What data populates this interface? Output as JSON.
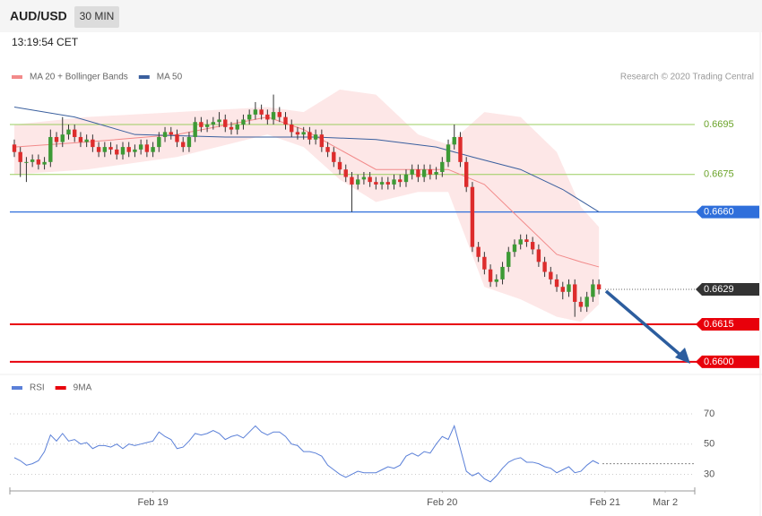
{
  "header": {
    "title": "AUD/USD",
    "timeframe": "30 MIN",
    "time": "13:19:54 CET"
  },
  "chart_data": [
    {
      "type": "candlestick",
      "source": "Research © 2020 Trading Central",
      "xlim": [
        -0.74,
        112.9
      ],
      "ylim": [
        0.6596,
        0.6709
      ],
      "up_color": "#3d9a35",
      "down_color": "#dd2c2c",
      "candles": {
        "open": [
          0.6687,
          0.6684,
          0.668,
          0.668,
          0.6681,
          0.6679,
          0.668,
          0.669,
          0.6688,
          0.6691,
          0.6693,
          0.669,
          0.6688,
          0.6689,
          0.6686,
          0.6684,
          0.6686,
          0.6685,
          0.6683,
          0.6686,
          0.6684,
          0.6685,
          0.6687,
          0.6684,
          0.6686,
          0.669,
          0.6692,
          0.6691,
          0.6688,
          0.6686,
          0.669,
          0.6696,
          0.6694,
          0.6695,
          0.6696,
          0.6697,
          0.6694,
          0.6693,
          0.6695,
          0.6697,
          0.6699,
          0.6701,
          0.6699,
          0.6697,
          0.67,
          0.6698,
          0.6695,
          0.6692,
          0.6691,
          0.6692,
          0.6689,
          0.6691,
          0.6686,
          0.6684,
          0.668,
          0.6677,
          0.6674,
          0.6671,
          0.6673,
          0.6674,
          0.6672,
          0.6671,
          0.6672,
          0.6671,
          0.6673,
          0.6672,
          0.6675,
          0.6677,
          0.6674,
          0.6677,
          0.6675,
          0.6676,
          0.668,
          0.6687,
          0.669,
          0.668,
          0.667,
          0.6646,
          0.6642,
          0.6637,
          0.6632,
          0.6633,
          0.6638,
          0.6644,
          0.6647,
          0.6649,
          0.6648,
          0.6645,
          0.664,
          0.6636,
          0.6633,
          0.663,
          0.6628,
          0.6631,
          0.6624,
          0.6622,
          0.6626,
          0.6631
        ],
        "high": [
          0.6689,
          0.6686,
          0.6682,
          0.6683,
          0.6683,
          0.6682,
          0.6693,
          0.6692,
          0.6698,
          0.6695,
          0.6695,
          0.6692,
          0.6691,
          0.6691,
          0.6688,
          0.6688,
          0.6688,
          0.6687,
          0.6688,
          0.6688,
          0.6687,
          0.6689,
          0.6689,
          0.6688,
          0.6692,
          0.6694,
          0.6694,
          0.6693,
          0.669,
          0.6692,
          0.6698,
          0.6698,
          0.6697,
          0.6698,
          0.67,
          0.6699,
          0.6696,
          0.6697,
          0.6699,
          0.6701,
          0.6704,
          0.6703,
          0.6701,
          0.6707,
          0.6702,
          0.67,
          0.6697,
          0.6694,
          0.6694,
          0.6694,
          0.6693,
          0.6693,
          0.6688,
          0.6686,
          0.6682,
          0.6679,
          0.6676,
          0.6675,
          0.6676,
          0.6676,
          0.6674,
          0.6674,
          0.6674,
          0.6675,
          0.6675,
          0.6677,
          0.6679,
          0.6679,
          0.6679,
          0.6679,
          0.6678,
          0.6682,
          0.6689,
          0.6695,
          0.6692,
          0.6682,
          0.6672,
          0.6648,
          0.6644,
          0.6639,
          0.6635,
          0.664,
          0.6646,
          0.6649,
          0.6651,
          0.6651,
          0.665,
          0.6647,
          0.6642,
          0.6638,
          0.6635,
          0.6632,
          0.6633,
          0.6633,
          0.6626,
          0.6628,
          0.6633,
          0.6633
        ],
        "low": [
          0.6682,
          0.6674,
          0.6672,
          0.6678,
          0.6677,
          0.6677,
          0.6678,
          0.6686,
          0.6686,
          0.6689,
          0.6688,
          0.6686,
          0.6686,
          0.6684,
          0.6682,
          0.6682,
          0.6683,
          0.6681,
          0.6681,
          0.6682,
          0.6682,
          0.6683,
          0.6682,
          0.6682,
          0.6684,
          0.6688,
          0.6689,
          0.6686,
          0.6684,
          0.6684,
          0.6688,
          0.6692,
          0.6692,
          0.6693,
          0.6694,
          0.6692,
          0.6691,
          0.6691,
          0.6693,
          0.6695,
          0.6697,
          0.6697,
          0.6695,
          0.6695,
          0.6696,
          0.6693,
          0.669,
          0.6689,
          0.6689,
          0.6687,
          0.6687,
          0.6684,
          0.6682,
          0.6678,
          0.6675,
          0.6672,
          0.666,
          0.6669,
          0.6671,
          0.667,
          0.6669,
          0.6669,
          0.6669,
          0.6669,
          0.667,
          0.667,
          0.6673,
          0.6672,
          0.6672,
          0.6673,
          0.6673,
          0.6674,
          0.6678,
          0.6685,
          0.6678,
          0.6668,
          0.6644,
          0.664,
          0.6635,
          0.663,
          0.663,
          0.6631,
          0.6636,
          0.6642,
          0.6645,
          0.6646,
          0.6643,
          0.6638,
          0.6634,
          0.6631,
          0.6628,
          0.6625,
          0.6626,
          0.6618,
          0.662,
          0.662,
          0.6624,
          0.6627
        ],
        "close": [
          0.6684,
          0.668,
          0.668,
          0.6681,
          0.6679,
          0.668,
          0.669,
          0.6688,
          0.6691,
          0.6693,
          0.669,
          0.6688,
          0.6689,
          0.6686,
          0.6684,
          0.6686,
          0.6685,
          0.6683,
          0.6686,
          0.6684,
          0.6685,
          0.6687,
          0.6684,
          0.6686,
          0.669,
          0.6692,
          0.6691,
          0.6688,
          0.6686,
          0.669,
          0.6696,
          0.6694,
          0.6695,
          0.6696,
          0.6697,
          0.6694,
          0.6693,
          0.6695,
          0.6697,
          0.6699,
          0.6701,
          0.6699,
          0.6697,
          0.67,
          0.6698,
          0.6695,
          0.6692,
          0.6691,
          0.6692,
          0.6689,
          0.6691,
          0.6686,
          0.6684,
          0.668,
          0.6677,
          0.6674,
          0.6671,
          0.6673,
          0.6674,
          0.6672,
          0.6671,
          0.6672,
          0.6671,
          0.6673,
          0.6672,
          0.6675,
          0.6677,
          0.6674,
          0.6677,
          0.6675,
          0.6676,
          0.668,
          0.6687,
          0.669,
          0.668,
          0.667,
          0.6646,
          0.6642,
          0.6637,
          0.6632,
          0.6633,
          0.6638,
          0.6644,
          0.6647,
          0.6649,
          0.6648,
          0.6645,
          0.664,
          0.6636,
          0.6633,
          0.663,
          0.6628,
          0.6631,
          0.6624,
          0.6622,
          0.6626,
          0.6631,
          0.6629
        ]
      },
      "series": [
        {
          "name": "MA 20 + Bollinger Bands",
          "color": "#f28a8a",
          "band_color": "#fde3e3",
          "x": [
            0,
            12,
            27,
            42,
            48,
            54,
            60,
            67,
            72,
            78,
            84,
            90,
            94,
            97
          ],
          "values": [
            0.6686,
            0.6688,
            0.6691,
            0.6698,
            0.6693,
            0.6685,
            0.6677,
            0.6677,
            0.6677,
            0.6671,
            0.6657,
            0.6643,
            0.664,
            0.6638
          ],
          "upper": [
            0.6695,
            0.6698,
            0.67,
            0.6702,
            0.67,
            0.6709,
            0.6707,
            0.6691,
            0.6687,
            0.67,
            0.6698,
            0.6684,
            0.6662,
            0.6654
          ],
          "lower": [
            0.6675,
            0.6677,
            0.6682,
            0.6691,
            0.6686,
            0.6673,
            0.6664,
            0.6668,
            0.6668,
            0.663,
            0.6625,
            0.6618,
            0.6616,
            0.6623
          ]
        },
        {
          "name": "MA 50",
          "color": "#3a5f9e",
          "x": [
            0,
            10,
            20,
            35,
            50,
            60,
            70,
            76,
            84,
            91,
            97
          ],
          "values": [
            0.6702,
            0.6698,
            0.6691,
            0.669,
            0.669,
            0.6689,
            0.6686,
            0.6682,
            0.6677,
            0.6669,
            0.666
          ]
        }
      ],
      "levels": [
        {
          "value": 0.6695,
          "color": "#9acd5f",
          "style": "line"
        },
        {
          "value": 0.6675,
          "color": "#9acd5f",
          "style": "line"
        },
        {
          "value": 0.666,
          "label": "0.6660",
          "color": "#2f6fdb",
          "style": "box"
        },
        {
          "value": 0.6615,
          "color": "#e8000b",
          "style": "box"
        },
        {
          "value": 0.66,
          "label": "0.6600",
          "color": "#e8000b",
          "style": "box"
        }
      ],
      "current": {
        "value": 0.6629,
        "color": "#333333"
      }
    },
    {
      "type": "line",
      "xlim": [
        -0.74,
        112.9
      ],
      "ylim": [
        19,
        83
      ],
      "yticks": [
        30,
        50,
        70
      ],
      "grid": true,
      "xticks": [
        {
          "value": 23,
          "label": "Feb 19"
        },
        {
          "value": 71,
          "label": "Feb 20"
        },
        {
          "value": 98,
          "label": "Feb 21"
        },
        {
          "value": 108,
          "label": "Mar 2"
        }
      ],
      "current": 37,
      "series": [
        {
          "name": "RSI",
          "color": "#5b80d8",
          "values": [
            41,
            39,
            36,
            37,
            39,
            45,
            56,
            52,
            57,
            52,
            53,
            50,
            51,
            47,
            49,
            49,
            48,
            50,
            47,
            50,
            49,
            50,
            51,
            52,
            58,
            55,
            53,
            47,
            48,
            52,
            57,
            56,
            57,
            59,
            57,
            53,
            55,
            56,
            54,
            58,
            62,
            58,
            56,
            58,
            58,
            55,
            50,
            49,
            45,
            45,
            44,
            42,
            36,
            33,
            30,
            28,
            30,
            32,
            31,
            31,
            31,
            33,
            35,
            34,
            36,
            42,
            44,
            42,
            45,
            44,
            50,
            55,
            53,
            62,
            47,
            32,
            29,
            31,
            27,
            25,
            29,
            34,
            38,
            40,
            41,
            38,
            38,
            37,
            35,
            34,
            31,
            33,
            35,
            31,
            32,
            36,
            39,
            37
          ]
        },
        {
          "name": "9MA",
          "color": "#e8000b"
        }
      ]
    }
  ]
}
